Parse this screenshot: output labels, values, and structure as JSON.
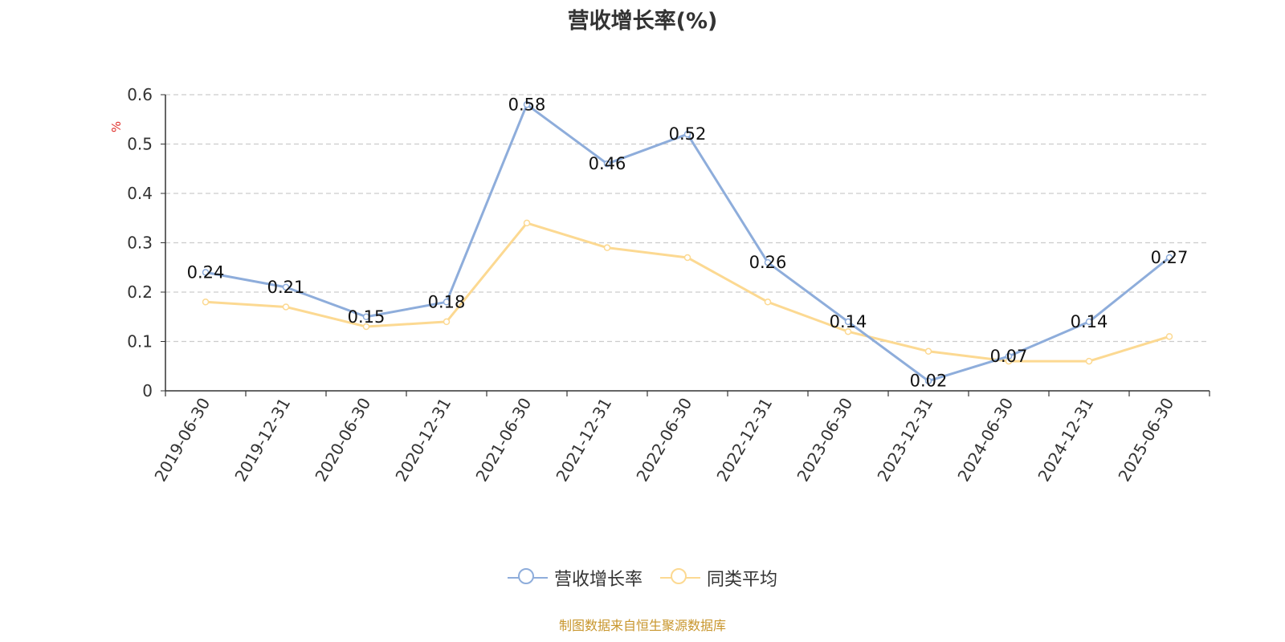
{
  "chart_data": {
    "type": "line",
    "title": "营收增长率(%)",
    "ylabel": "%",
    "xlabel": "",
    "ylim": [
      0,
      0.6
    ],
    "yticks": [
      "0",
      "0.1",
      "0.2",
      "0.3",
      "0.4",
      "0.5",
      "0.6"
    ],
    "grid": true,
    "legend_position": "bottom",
    "categories": [
      "2019-06-30",
      "2019-12-31",
      "2020-06-30",
      "2020-12-31",
      "2021-06-30",
      "2021-12-31",
      "2022-06-30",
      "2022-12-31",
      "2023-06-30",
      "2023-12-31",
      "2024-06-30",
      "2024-12-31",
      "2025-06-30"
    ],
    "series": [
      {
        "name": "营收增长率",
        "color": "#8eaddb",
        "values": [
          0.24,
          0.21,
          0.15,
          0.18,
          0.58,
          0.46,
          0.52,
          0.26,
          0.14,
          0.02,
          0.07,
          0.14,
          0.27
        ],
        "labels": [
          "0.24",
          "0.21",
          "0.15",
          "0.18",
          "0.58",
          "0.46",
          "0.52",
          "0.26",
          "0.14",
          "0.02",
          "0.07",
          "0.14",
          "0.27"
        ]
      },
      {
        "name": "同类平均",
        "color": "#fcd992",
        "values": [
          0.18,
          0.17,
          0.13,
          0.14,
          0.34,
          0.29,
          0.27,
          0.18,
          0.12,
          0.08,
          0.06,
          0.06,
          0.11
        ]
      }
    ]
  },
  "source_note": "制图数据来自恒生聚源数据库"
}
